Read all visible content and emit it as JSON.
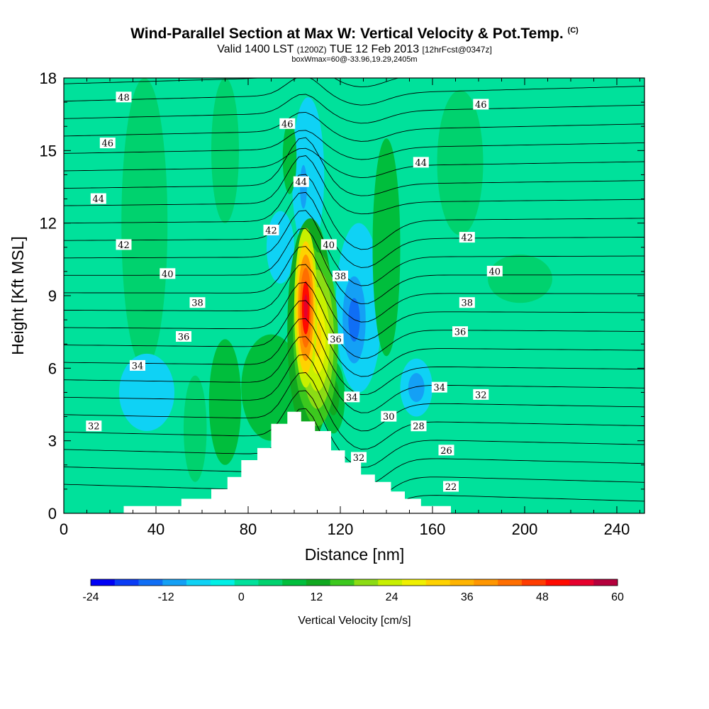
{
  "chart_data": {
    "type": "heatmap",
    "title": "Wind-Parallel Section at Max W: Vertical Velocity & Pot.Temp.",
    "title_mark": "(C)",
    "subtitle_parts": [
      "Valid 1400 LST",
      "(1200Z)",
      "TUE 12 Feb 2013",
      "[12hrFcst@0347z]"
    ],
    "subtitle2": "boxWmax=60@-33.96,19.29,2405m",
    "xlabel": "Distance [nm]",
    "ylabel": "Height [Kft MSL]",
    "xlim": [
      0,
      252
    ],
    "ylim": [
      0,
      18
    ],
    "x_ticks": [
      "0",
      "40",
      "80",
      "120",
      "160",
      "200",
      "240"
    ],
    "y_ticks": [
      "0",
      "3",
      "6",
      "9",
      "12",
      "15",
      "18"
    ],
    "colorbar": {
      "label": "Vertical Velocity [cm/s]",
      "ticks": [
        "-24",
        "-12",
        "0",
        "12",
        "24",
        "36",
        "48",
        "60"
      ],
      "min": -24,
      "max": 60,
      "colors": [
        "#0000f5",
        "#0a3cf5",
        "#0f6ef5",
        "#14a0f5",
        "#0fd2f5",
        "#00f0e6",
        "#00e19b",
        "#00d26e",
        "#00be3c",
        "#10a820",
        "#3cc81e",
        "#8cdc14",
        "#c8f000",
        "#f0f000",
        "#ffd200",
        "#ffb400",
        "#ff9600",
        "#ff6e00",
        "#ff3c00",
        "#ff0a00",
        "#e6002d",
        "#b4003c"
      ]
    },
    "terrain_kft": [
      [
        0,
        0
      ],
      [
        26,
        0
      ],
      [
        26,
        0.3
      ],
      [
        51,
        0.3
      ],
      [
        51,
        0.6
      ],
      [
        64,
        0.6
      ],
      [
        64,
        1.0
      ],
      [
        71,
        1.0
      ],
      [
        71,
        1.5
      ],
      [
        77,
        1.5
      ],
      [
        77,
        2.2
      ],
      [
        84,
        2.2
      ],
      [
        84,
        2.7
      ],
      [
        90,
        2.7
      ],
      [
        90,
        3.7
      ],
      [
        97,
        3.7
      ],
      [
        97,
        4.2
      ],
      [
        103,
        4.2
      ],
      [
        103,
        3.8
      ],
      [
        109,
        3.8
      ],
      [
        109,
        3.4
      ],
      [
        116,
        3.4
      ],
      [
        116,
        2.6
      ],
      [
        122,
        2.6
      ],
      [
        122,
        2.1
      ],
      [
        129,
        2.1
      ],
      [
        129,
        1.6
      ],
      [
        135,
        1.6
      ],
      [
        135,
        1.3
      ],
      [
        142,
        1.3
      ],
      [
        142,
        0.9
      ],
      [
        148,
        0.9
      ],
      [
        148,
        0.6
      ],
      [
        155,
        0.6
      ],
      [
        155,
        0.3
      ],
      [
        168,
        0.3
      ],
      [
        168,
        0
      ],
      [
        252,
        0
      ]
    ],
    "velocity_features": [
      {
        "x": 105,
        "y": 8.5,
        "rx": 5,
        "ry": 3.3,
        "w": 55
      },
      {
        "x": 110,
        "y": 7.2,
        "rx": 9,
        "ry": 3.6,
        "w": 32
      },
      {
        "x": 107,
        "y": 7.6,
        "rx": 10,
        "ry": 4.6,
        "w": 22
      },
      {
        "x": 104,
        "y": 13.5,
        "rx": 3,
        "ry": 1.8,
        "w": -12
      },
      {
        "x": 106,
        "y": 14.0,
        "rx": 7,
        "ry": 3.2,
        "w": -6
      },
      {
        "x": 126,
        "y": 8.0,
        "rx": 5,
        "ry": 1.8,
        "w": -14
      },
      {
        "x": 128,
        "y": 8.5,
        "rx": 10,
        "ry": 3.5,
        "w": -6
      },
      {
        "x": 153,
        "y": 5.2,
        "rx": 7,
        "ry": 1.2,
        "w": -11
      },
      {
        "x": 36,
        "y": 5.0,
        "rx": 12,
        "ry": 1.6,
        "w": -7
      },
      {
        "x": 94,
        "y": 11.0,
        "rx": 6,
        "ry": 1.5,
        "w": -7
      },
      {
        "x": 90,
        "y": 5.2,
        "rx": 13,
        "ry": 2.2,
        "w": 8
      },
      {
        "x": 70,
        "y": 4.6,
        "rx": 7,
        "ry": 2.6,
        "w": 8
      },
      {
        "x": 57,
        "y": 3.5,
        "rx": 5,
        "ry": 2.2,
        "w": 6
      },
      {
        "x": 117,
        "y": 4.8,
        "rx": 5,
        "ry": 1.5,
        "w": 14
      },
      {
        "x": 98,
        "y": 14.7,
        "rx": 3,
        "ry": 1.5,
        "w": 8
      },
      {
        "x": 140,
        "y": 11.0,
        "rx": 6,
        "ry": 4.5,
        "w": 7
      },
      {
        "x": 198,
        "y": 9.7,
        "rx": 14,
        "ry": 1.0,
        "w": 5
      },
      {
        "x": 35,
        "y": 12.0,
        "rx": 10,
        "ry": 6,
        "w": 4
      },
      {
        "x": 70,
        "y": 15.0,
        "rx": 6,
        "ry": 3,
        "w": 4
      },
      {
        "x": 172,
        "y": 14.5,
        "rx": 10,
        "ry": 3,
        "w": 3
      }
    ],
    "isentropes_K": [
      22,
      24,
      26,
      28,
      30,
      32,
      34,
      36,
      38,
      40,
      42,
      44,
      46,
      48
    ],
    "contour_labels": [
      {
        "text": "48",
        "x": 26,
        "y": 17.2
      },
      {
        "text": "46",
        "x": 181,
        "y": 16.9
      },
      {
        "text": "46",
        "x": 97,
        "y": 16.1
      },
      {
        "text": "46",
        "x": 19,
        "y": 15.3
      },
      {
        "text": "44",
        "x": 155,
        "y": 14.5
      },
      {
        "text": "44",
        "x": 103,
        "y": 13.7
      },
      {
        "text": "44",
        "x": 15,
        "y": 13.0
      },
      {
        "text": "42",
        "x": 90,
        "y": 11.7
      },
      {
        "text": "42",
        "x": 175,
        "y": 11.4
      },
      {
        "text": "42",
        "x": 26,
        "y": 11.1
      },
      {
        "text": "40",
        "x": 115,
        "y": 11.1
      },
      {
        "text": "40",
        "x": 187,
        "y": 10.0
      },
      {
        "text": "40",
        "x": 45,
        "y": 9.9
      },
      {
        "text": "38",
        "x": 120,
        "y": 9.8
      },
      {
        "text": "38",
        "x": 175,
        "y": 8.7
      },
      {
        "text": "38",
        "x": 58,
        "y": 8.7
      },
      {
        "text": "36",
        "x": 118,
        "y": 7.2
      },
      {
        "text": "36",
        "x": 172,
        "y": 7.5
      },
      {
        "text": "36",
        "x": 52,
        "y": 7.3
      },
      {
        "text": "34",
        "x": 32,
        "y": 6.1
      },
      {
        "text": "34",
        "x": 125,
        "y": 4.8
      },
      {
        "text": "34",
        "x": 163,
        "y": 5.2
      },
      {
        "text": "32",
        "x": 181,
        "y": 4.9
      },
      {
        "text": "32",
        "x": 13,
        "y": 3.6
      },
      {
        "text": "32",
        "x": 128,
        "y": 2.3
      },
      {
        "text": "30",
        "x": 141,
        "y": 4.0
      },
      {
        "text": "28",
        "x": 154,
        "y": 3.6
      },
      {
        "text": "26",
        "x": 166,
        "y": 2.6
      },
      {
        "text": "22",
        "x": 168,
        "y": 1.1
      }
    ]
  }
}
